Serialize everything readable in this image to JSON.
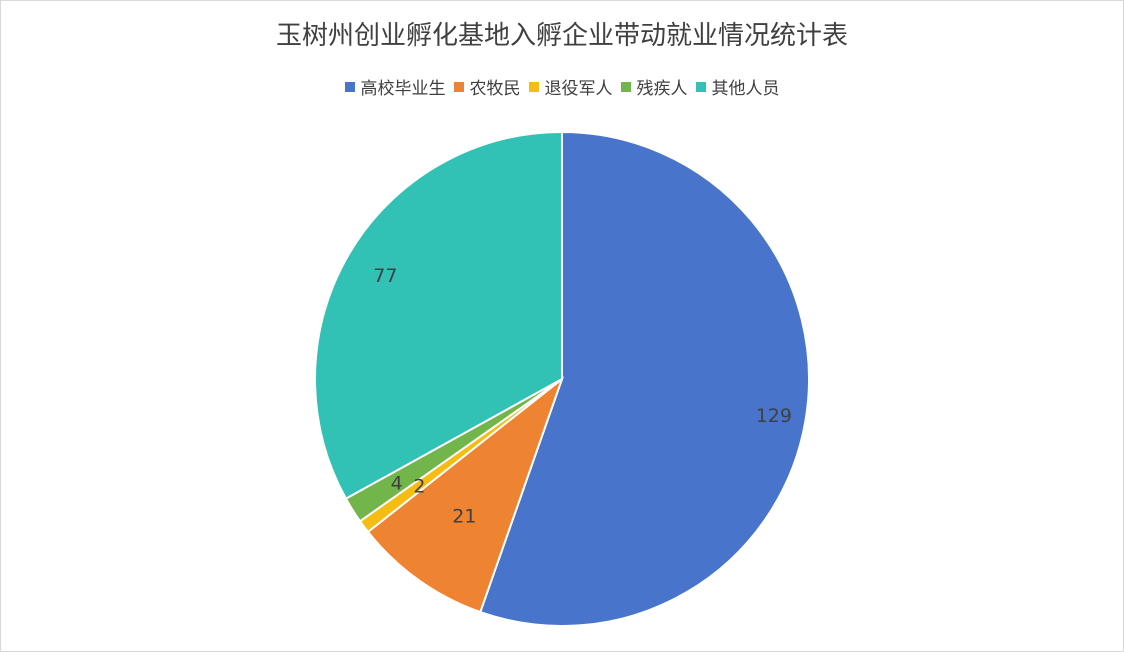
{
  "chart_data": {
    "type": "pie",
    "title": "玉树州创业孵化基地入孵企业带动就业情况统计表",
    "categories": [
      "高校毕业生",
      "农牧民",
      "退役军人",
      "残疾人",
      "其他人员"
    ],
    "values": [
      129,
      21,
      2,
      4,
      77
    ],
    "colors": [
      "#4874cb",
      "#ee8332",
      "#f5bd14",
      "#72b54a",
      "#31c1b5"
    ],
    "legend_position": "top",
    "data_labels": [
      "129",
      "21",
      "2",
      "4",
      "77"
    ]
  }
}
